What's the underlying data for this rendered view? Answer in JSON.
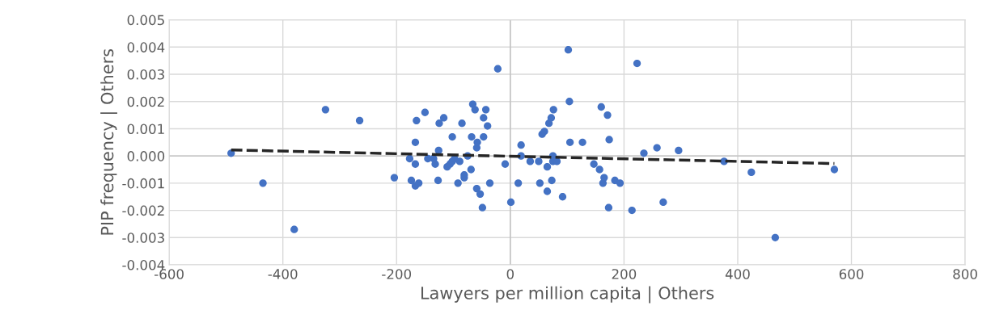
{
  "chart_data": {
    "type": "scatter",
    "xlabel": "Lawyers per million capita | Others",
    "ylabel": "PIP frequency | Others",
    "xlim": [
      -600,
      800
    ],
    "xticks": [
      -600,
      -400,
      -200,
      0,
      200,
      400,
      600,
      800
    ],
    "ylim": [
      -0.004,
      0.005
    ],
    "yticks": [
      {
        "value": -0.004,
        "label": "-0.004"
      },
      {
        "value": -0.003,
        "label": "-0.003"
      },
      {
        "value": -0.002,
        "label": "-0.002"
      },
      {
        "value": -0.001,
        "label": "-0.001"
      },
      {
        "value": 0,
        "label": "0.000"
      },
      {
        "value": 0.001,
        "label": "0.001"
      },
      {
        "value": 0.002,
        "label": "0.002"
      },
      {
        "value": 0.003,
        "label": "0.003"
      },
      {
        "value": 0.004,
        "label": "0.004"
      },
      {
        "value": 0.005,
        "label": "0.005"
      }
    ],
    "grid": true,
    "marker": "circle",
    "series": [
      {
        "color": "#4472c4",
        "x": [
          -491,
          -435,
          -380,
          -325,
          -265,
          -204,
          -177,
          -174,
          -167,
          -161,
          -165,
          -167,
          -167,
          -150,
          -145,
          -135,
          -132,
          -127,
          -126,
          -125,
          -117,
          -111,
          -106,
          -102,
          -102,
          -98,
          -92,
          -89,
          -85,
          -81,
          -81,
          -75,
          -69,
          -68,
          -66,
          -62,
          -59,
          -59,
          -58,
          -53,
          -49,
          -47,
          -43,
          -47,
          -40,
          -36,
          -22,
          -9,
          1,
          14,
          19,
          19,
          35,
          50,
          52,
          56,
          60,
          65,
          65,
          68,
          72,
          75,
          75,
          73,
          76,
          82,
          92,
          102,
          104,
          105,
          127,
          147,
          157,
          160,
          163,
          165,
          171,
          173,
          174,
          184,
          193,
          214,
          235,
          258,
          223,
          269,
          296,
          376,
          424,
          466,
          570
        ],
        "values": [
          0.0001,
          -0.001,
          -0.0027,
          0.0017,
          0.0013,
          -0.0008,
          -0.0001,
          -0.0009,
          -0.0011,
          -0.001,
          0.0013,
          0.0005,
          -0.0003,
          0.0016,
          -0.0001,
          -0.0001,
          -0.0003,
          -0.0009,
          0.0002,
          0.0012,
          0.0014,
          -0.0004,
          -0.0003,
          -0.0002,
          0.0007,
          -0.0001,
          -0.001,
          -0.0002,
          0.0012,
          -0.0007,
          -0.0008,
          0.0,
          -0.0005,
          0.0007,
          0.0019,
          0.0017,
          -0.0012,
          0.0003,
          0.0005,
          -0.0014,
          -0.0019,
          0.0007,
          0.0017,
          0.0014,
          0.0011,
          -0.001,
          0.0032,
          -0.0003,
          -0.0017,
          -0.001,
          0.0004,
          0.0,
          -0.0002,
          -0.0002,
          -0.001,
          0.0008,
          0.0009,
          -0.0004,
          -0.0013,
          0.0012,
          0.0014,
          -0.0002,
          0.0,
          -0.0009,
          0.0017,
          -0.0002,
          -0.0015,
          0.0039,
          0.002,
          0.0005,
          0.0005,
          -0.0003,
          -0.0005,
          0.0018,
          -0.001,
          -0.0008,
          0.0015,
          -0.0019,
          0.0006,
          -0.0009,
          -0.001,
          -0.002,
          0.0001,
          0.0003,
          0.0034,
          -0.0017,
          0.0002,
          -0.0002,
          -0.0006,
          -0.003,
          -0.0005
        ]
      },
      {
        "type": "line",
        "color": "#262626",
        "line_style": "dashed",
        "marker": "none",
        "x": [
          -491,
          570
        ],
        "values": [
          0.00022,
          -0.00028
        ]
      }
    ]
  }
}
